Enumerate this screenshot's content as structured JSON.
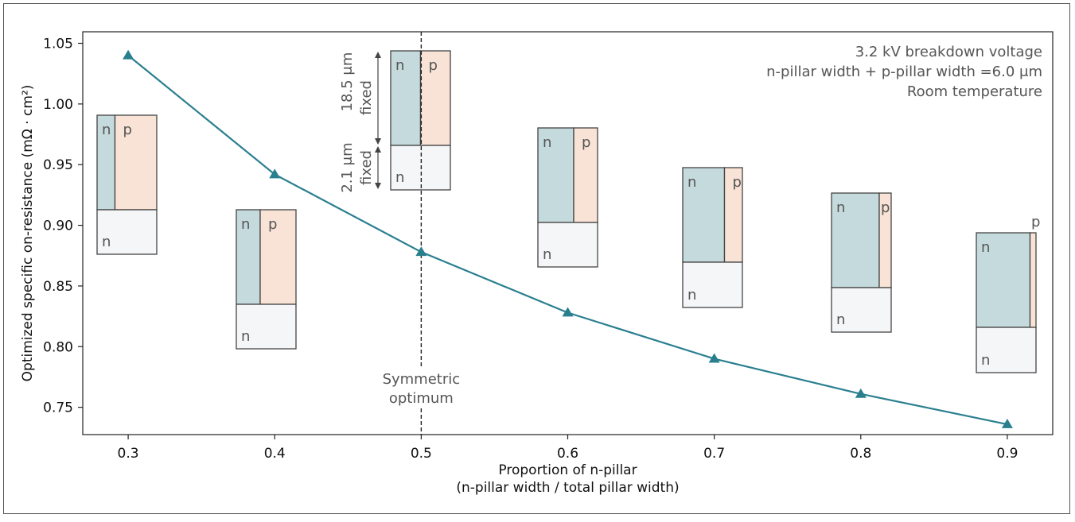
{
  "chart_data": {
    "type": "line",
    "x": [
      0.3,
      0.4,
      0.5,
      0.6,
      0.7,
      0.8,
      0.9
    ],
    "series": [
      {
        "values": [
          1.04,
          0.942,
          0.878,
          0.828,
          0.79,
          0.761,
          0.736
        ]
      }
    ],
    "xlabel": "Proportion of n-pillar",
    "xlabel_line2": "(n-pillar width / total pillar width)",
    "ylabel": "Optimized specific on-resistance (mΩ · cm²)",
    "xlim": [
      0.269,
      0.931
    ],
    "ylim": [
      0.7275,
      1.0595
    ],
    "xticks": [
      "0.3",
      "0.4",
      "0.5",
      "0.6",
      "0.7",
      "0.8",
      "0.9"
    ],
    "xtick_values": [
      0.3,
      0.4,
      0.5,
      0.6,
      0.7,
      0.8,
      0.9
    ],
    "yticks": [
      "0.75",
      "0.80",
      "0.85",
      "0.90",
      "0.95",
      "1.00",
      "1.05"
    ],
    "ytick_values": [
      0.75,
      0.8,
      0.85,
      0.9,
      0.95,
      1.0,
      1.05
    ],
    "grid": false,
    "line_color": "#2a7f8f",
    "marker": "triangle",
    "reference_line": {
      "x": 0.5,
      "style": "dashed",
      "label_line1": "Symmetric",
      "label_line2": "optimum"
    },
    "annotations": [
      "3.2 kV breakdown voltage",
      "n-pillar width + p-pillar width =6.0 μm",
      "Room temperature"
    ],
    "dimension_labels": {
      "upper": {
        "value": "18.5 μm",
        "note": "fixed"
      },
      "lower": {
        "value": "2.1 μm",
        "note": "fixed"
      }
    },
    "pillar_insets": [
      {
        "n_proportion": 0.3,
        "n_label": "n",
        "p_label": "p",
        "substrate_label": "n"
      },
      {
        "n_proportion": 0.4,
        "n_label": "n",
        "p_label": "p",
        "substrate_label": "n"
      },
      {
        "n_proportion": 0.5,
        "n_label": "n",
        "p_label": "p",
        "substrate_label": "n"
      },
      {
        "n_proportion": 0.6,
        "n_label": "n",
        "p_label": "p",
        "substrate_label": "n"
      },
      {
        "n_proportion": 0.7,
        "n_label": "n",
        "p_label": "p",
        "substrate_label": "n"
      },
      {
        "n_proportion": 0.8,
        "n_label": "n",
        "p_label": "p",
        "substrate_label": "n"
      },
      {
        "n_proportion": 0.9,
        "n_label": "n",
        "p_label": "p",
        "substrate_label": "n"
      }
    ],
    "colors": {
      "n_pillar": "#c5dadc",
      "p_pillar": "#f8e3d6",
      "substrate": "#f5f6f8",
      "outline": "#444444",
      "text": "#555555"
    }
  }
}
